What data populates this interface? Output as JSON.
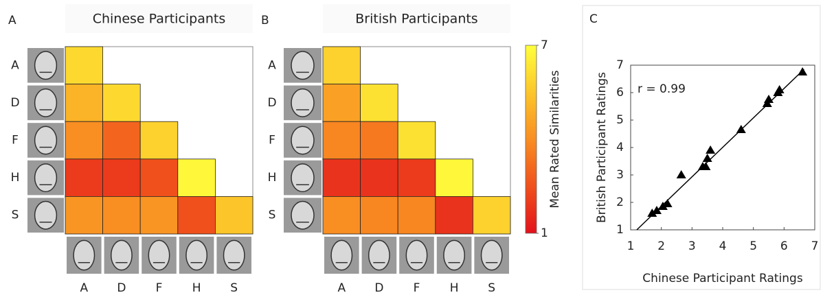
{
  "chart_data": [
    {
      "type": "heatmap",
      "panel_label": "A",
      "title": "Chinese Participants",
      "rows": [
        "A",
        "D",
        "F",
        "H",
        "S"
      ],
      "columns": [
        "A",
        "D",
        "F",
        "H",
        "S"
      ],
      "z": [
        [
          6.0,
          null,
          null,
          null,
          null
        ],
        [
          5.0,
          6.0,
          null,
          null,
          null
        ],
        [
          4.0,
          3.0,
          5.8,
          null,
          null
        ],
        [
          2.0,
          2.0,
          2.5,
          6.8,
          null
        ],
        [
          4.2,
          4.0,
          4.2,
          2.5,
          5.5
        ]
      ]
    },
    {
      "type": "heatmap",
      "panel_label": "B",
      "title": "British Participants",
      "rows": [
        "A",
        "D",
        "F",
        "H",
        "S"
      ],
      "columns": [
        "A",
        "D",
        "F",
        "H",
        "S"
      ],
      "z": [
        [
          5.8,
          null,
          null,
          null,
          null
        ],
        [
          4.5,
          6.2,
          null,
          null,
          null
        ],
        [
          3.8,
          3.5,
          6.2,
          null,
          null
        ],
        [
          1.8,
          1.8,
          2.0,
          6.8,
          null
        ],
        [
          4.0,
          3.8,
          3.8,
          1.8,
          5.8
        ]
      ],
      "colorbar": {
        "label": "Mean Rated Similarities",
        "clim": [
          1,
          7
        ],
        "ticks": [
          1,
          7
        ],
        "colormap": [
          "#e3121c",
          "#f0501c",
          "#f98e22",
          "#fcc62a",
          "#ffff3c"
        ]
      }
    },
    {
      "type": "scatter",
      "panel_label": "C",
      "annotation": "r = 0.99",
      "xlabel": "Chinese Participant Ratings",
      "ylabel": "British Participant Ratings",
      "xlim": [
        1,
        7
      ],
      "ylim": [
        1,
        7
      ],
      "xticks": [
        1,
        2,
        3,
        4,
        5,
        6,
        7
      ],
      "yticks": [
        1,
        2,
        3,
        4,
        5,
        6,
        7
      ],
      "color": "#000000",
      "x": [
        1.7,
        1.85,
        2.05,
        2.2,
        2.65,
        3.35,
        3.45,
        3.5,
        3.6,
        4.6,
        5.45,
        5.5,
        5.8,
        5.85,
        6.6
      ],
      "y": [
        1.6,
        1.7,
        1.85,
        1.95,
        3.0,
        3.3,
        3.3,
        3.6,
        3.9,
        4.65,
        5.6,
        5.75,
        6.0,
        6.1,
        6.75
      ],
      "fit_line": {
        "x": [
          1.2,
          6.65
        ],
        "y": [
          1.0,
          6.85
        ]
      }
    }
  ]
}
